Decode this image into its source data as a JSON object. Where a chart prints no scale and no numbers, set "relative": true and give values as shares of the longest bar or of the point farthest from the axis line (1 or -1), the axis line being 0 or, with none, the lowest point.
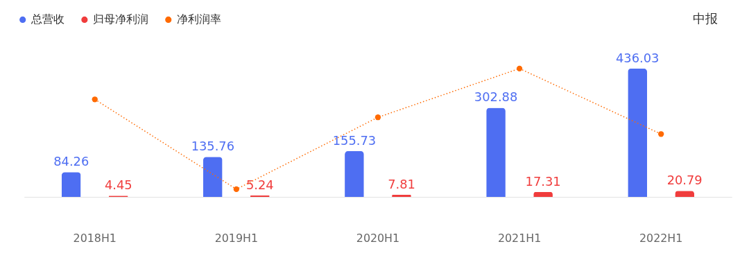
{
  "chart_data": [
    {
      "type": "bar",
      "categories": [
        "2018H1",
        "2019H1",
        "2020H1",
        "2021H1",
        "2022H1"
      ],
      "series": [
        {
          "name": "总营收",
          "color": "#4e6ef2",
          "values": [
            84.26,
            135.76,
            155.73,
            302.88,
            436.03
          ]
        },
        {
          "name": "归母净利润",
          "color": "#f03c3c",
          "values": [
            4.45,
            5.24,
            7.81,
            17.31,
            20.79
          ]
        }
      ],
      "data_labels": true,
      "legend": "top left",
      "tick_labels": "x",
      "annotations": [
        "中报"
      ]
    },
    {
      "type": "line",
      "relative": true,
      "categories": [
        "2018H1",
        "2019H1",
        "2020H1",
        "2021H1",
        "2022H1"
      ],
      "series": [
        {
          "name": "净利润率",
          "color": "#ff6a00",
          "values": [
            0.76,
            0.06,
            0.62,
            1.0,
            0.49
          ]
        }
      ],
      "marker": "circle",
      "line_style": "dotted",
      "tick_labels": false
    }
  ]
}
